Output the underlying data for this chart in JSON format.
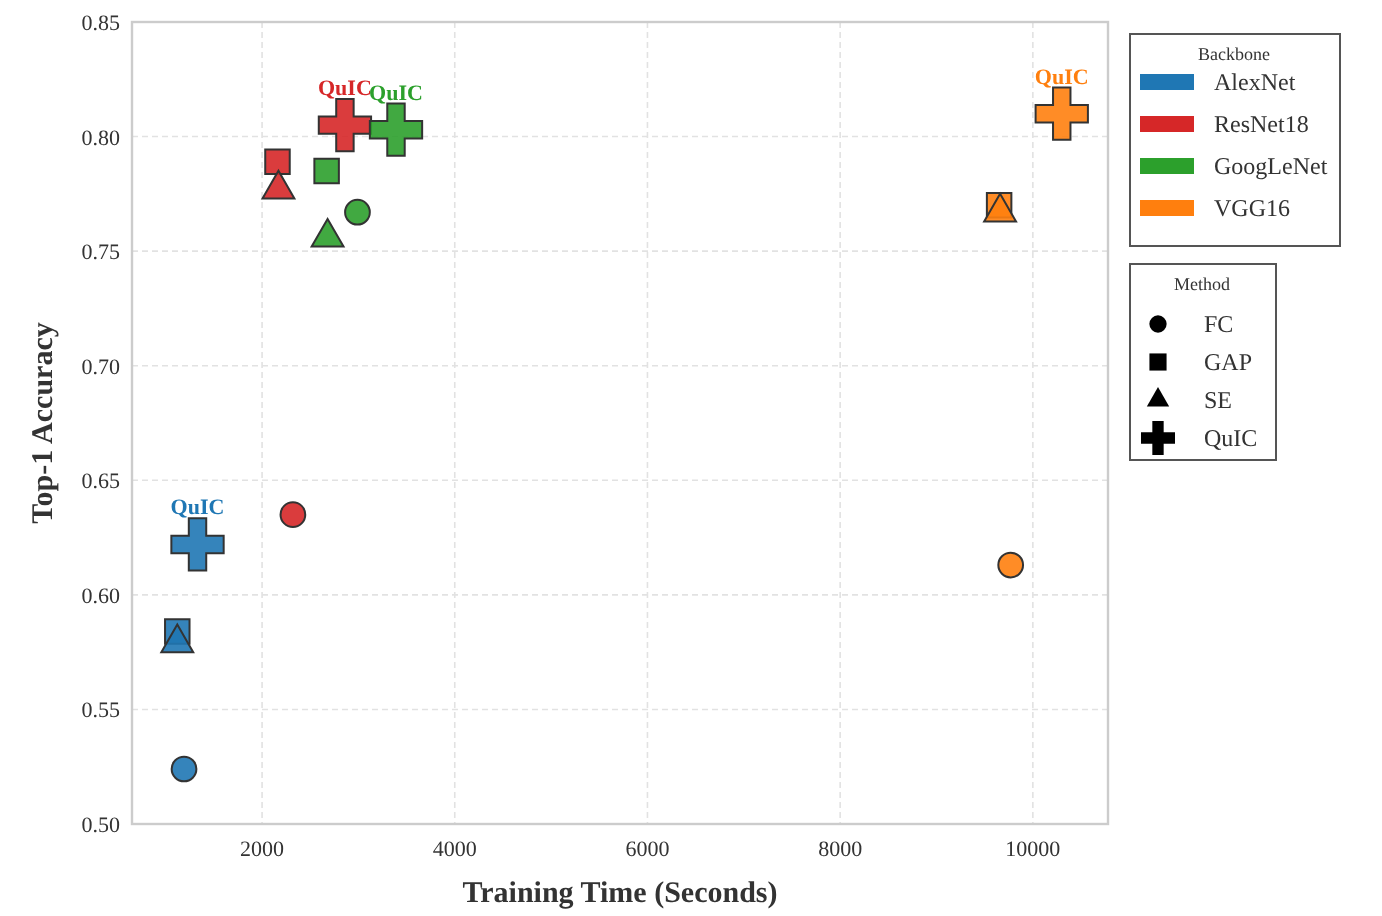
{
  "chart_data": {
    "type": "scatter",
    "xlabel": "Training Time (Seconds)",
    "ylabel": "Top-1 Accuracy",
    "legend_title": [
      "Backbone",
      "Method"
    ],
    "series": [
      {
        "name": "AlexNet",
        "color": "#1f77b4",
        "marker": [
          "circle",
          "square",
          "triangle",
          "cross"
        ],
        "x": [
          1190,
          1120,
          1120,
          1330
        ],
        "values": [
          0.524,
          0.584,
          0.579,
          0.622
        ]
      },
      {
        "name": "ResNet18",
        "color": "#d62728",
        "marker": [
          "circle",
          "square",
          "triangle",
          "cross"
        ],
        "x": [
          2320,
          2160,
          2170,
          2860
        ],
        "values": [
          0.635,
          0.789,
          0.777,
          0.805
        ]
      },
      {
        "name": "GoogLeNet",
        "color": "#2ca02c",
        "marker": [
          "circle",
          "square",
          "triangle",
          "cross"
        ],
        "x": [
          2990,
          2670,
          2680,
          3390
        ],
        "values": [
          0.767,
          0.785,
          0.756,
          0.803
        ]
      },
      {
        "name": "VGG16",
        "color": "#ff7f0e",
        "marker": [
          "circle",
          "square",
          "triangle",
          "cross"
        ],
        "x": [
          9770,
          9650,
          9660,
          10300
        ],
        "values": [
          0.613,
          0.77,
          0.767,
          0.81
        ]
      },
      {
        "name": "FC",
        "color": "#000000",
        "marker": "circle"
      },
      {
        "name": "GAP",
        "color": "#000000",
        "marker": "square"
      },
      {
        "name": "SE",
        "color": "#000000",
        "marker": "triangle"
      },
      {
        "name": "QuIC",
        "color": "#000000",
        "marker": "cross"
      }
    ],
    "annotations": [
      {
        "text": "QuIC",
        "x": 1330,
        "y": 0.622
      },
      {
        "text": "QuIC",
        "x": 2860,
        "y": 0.805
      },
      {
        "text": "QuIC",
        "x": 3390,
        "y": 0.803
      },
      {
        "text": "QuIC",
        "x": 10300,
        "y": 0.81
      }
    ],
    "xlim": [
      650,
      10780
    ],
    "ylim": [
      0.5,
      0.85
    ],
    "xticks": [
      2000,
      4000,
      6000,
      8000,
      10000
    ],
    "yticks": [
      {
        "value": 0.5,
        "label": "0.50"
      },
      {
        "value": 0.55,
        "label": "0.55"
      },
      {
        "value": 0.6,
        "label": "0.60"
      },
      {
        "value": 0.65,
        "label": "0.65"
      },
      {
        "value": 0.7,
        "label": "0.70"
      },
      {
        "value": 0.75,
        "label": "0.75"
      },
      {
        "value": 0.8,
        "label": "0.80"
      },
      {
        "value": 0.85,
        "label": "0.85"
      }
    ],
    "grid": true,
    "legend": "right"
  }
}
